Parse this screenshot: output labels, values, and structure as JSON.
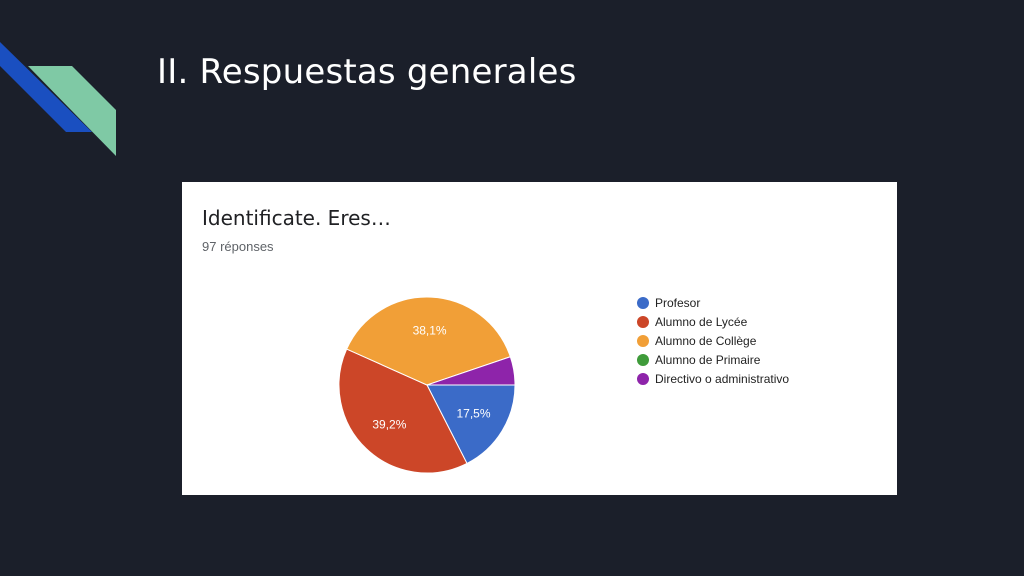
{
  "slide": {
    "title": "II. Respuestas generales"
  },
  "form": {
    "question": "Identificate. Eres…",
    "responses": "97 réponses"
  },
  "colors": {
    "background": "#1b1f2a",
    "accent_blue": "#1a4fc0",
    "accent_green": "#7fc9a5"
  },
  "chart_data": {
    "type": "pie",
    "title": "Identificate. Eres…",
    "legend_position": "right",
    "slices": [
      {
        "label": "Profesor",
        "value": 17.5,
        "value_label": "17,5%",
        "color": "#3b6bc8"
      },
      {
        "label": "Alumno de Lycée",
        "value": 39.2,
        "value_label": "39,2%",
        "color": "#cc4628"
      },
      {
        "label": "Alumno de Collège",
        "value": 38.1,
        "value_label": "38,1%",
        "color": "#f19f37"
      },
      {
        "label": "Alumno de Primaire",
        "value": 0,
        "value_label": "",
        "color": "#3f9b3a"
      },
      {
        "label": "Directivo o administrativo",
        "value": 5.2,
        "value_label": "",
        "color": "#8e24aa"
      }
    ]
  }
}
